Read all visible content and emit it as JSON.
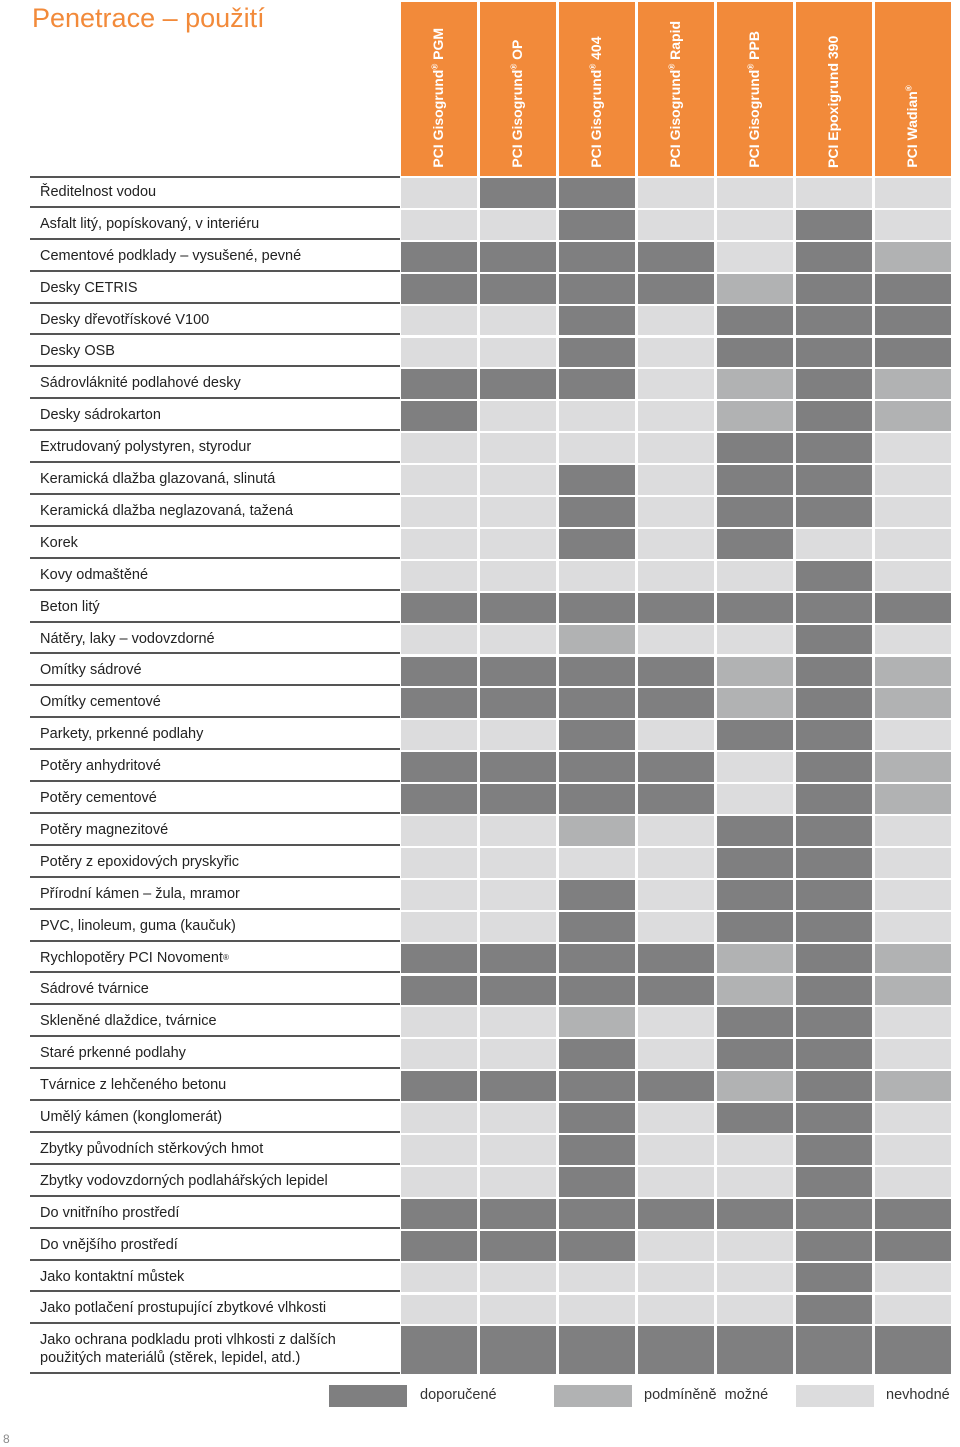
{
  "title": "Penetrace – použití",
  "products": [
    {
      "name": "PCI Gisogrund",
      "reg": "®",
      "suffix": " PGM"
    },
    {
      "name": "PCI Gisogrund",
      "reg": "®",
      "suffix": " OP"
    },
    {
      "name": "PCI Gisogrund",
      "reg": "®",
      "suffix": " 404"
    },
    {
      "name": "PCI Gisogrund",
      "reg": "®",
      "suffix": " Rapid"
    },
    {
      "name": "PCI Gisogrund",
      "reg": "®",
      "suffix": " PPB"
    },
    {
      "name": "PCI Epoxigrund 390",
      "reg": "",
      "suffix": ""
    },
    {
      "name": "PCI Wadian",
      "reg": "®",
      "suffix": ""
    }
  ],
  "colors": {
    "header": "#f28a3a",
    "1": "#7f7f80",
    "2": "#b1b2b3",
    "3": "#dcdcdd"
  },
  "rows": [
    {
      "label": "Ředitelnost vodou",
      "ratings": [
        3,
        1,
        1,
        3,
        3,
        3,
        3
      ]
    },
    {
      "label": "Asfalt litý, popískovaný, v interiéru",
      "ratings": [
        3,
        3,
        1,
        3,
        3,
        1,
        3
      ]
    },
    {
      "label": "Cementové podklady – vysušené, pevné",
      "ratings": [
        1,
        1,
        1,
        1,
        3,
        1,
        2
      ]
    },
    {
      "label": "Desky CETRIS",
      "ratings": [
        1,
        1,
        1,
        1,
        2,
        1,
        1
      ]
    },
    {
      "label": "Desky dřevotřískové V100",
      "ratings": [
        3,
        3,
        1,
        3,
        1,
        1,
        1
      ]
    },
    {
      "label": "Desky OSB",
      "ratings": [
        3,
        3,
        1,
        3,
        1,
        1,
        1
      ]
    },
    {
      "label": "Sádrovláknité podlahové desky",
      "ratings": [
        1,
        1,
        1,
        3,
        2,
        1,
        2
      ]
    },
    {
      "label": "Desky sádrokarton",
      "ratings": [
        1,
        3,
        3,
        3,
        2,
        1,
        2
      ]
    },
    {
      "label": "Extrudovaný polystyren, styrodur",
      "ratings": [
        3,
        3,
        3,
        3,
        1,
        1,
        3
      ]
    },
    {
      "label": "Keramická dlažba glazovaná, slinutá",
      "ratings": [
        3,
        3,
        1,
        3,
        1,
        1,
        3
      ]
    },
    {
      "label": "Keramická dlažba neglazovaná, tažená",
      "ratings": [
        3,
        3,
        1,
        3,
        1,
        1,
        3
      ]
    },
    {
      "label": "Korek",
      "ratings": [
        3,
        3,
        1,
        3,
        1,
        3,
        3
      ]
    },
    {
      "label": "Kovy odmaštěné",
      "ratings": [
        3,
        3,
        3,
        3,
        3,
        1,
        3
      ]
    },
    {
      "label": "Beton litý",
      "ratings": [
        1,
        1,
        1,
        1,
        1,
        1,
        1
      ]
    },
    {
      "label": "Nátěry, laky – vodovzdorné",
      "ratings": [
        3,
        3,
        2,
        3,
        3,
        1,
        3
      ]
    },
    {
      "label": "Omítky sádrové",
      "ratings": [
        1,
        1,
        1,
        1,
        2,
        1,
        2
      ]
    },
    {
      "label": "Omítky cementové",
      "ratings": [
        1,
        1,
        1,
        1,
        2,
        1,
        2
      ]
    },
    {
      "label": "Parkety, prkenné podlahy",
      "ratings": [
        3,
        3,
        1,
        3,
        1,
        1,
        3
      ]
    },
    {
      "label": "Potěry anhydritové",
      "ratings": [
        1,
        1,
        1,
        1,
        3,
        1,
        2
      ]
    },
    {
      "label": "Potěry cementové",
      "ratings": [
        1,
        1,
        1,
        1,
        3,
        1,
        2
      ]
    },
    {
      "label": "Potěry magnezitové",
      "ratings": [
        3,
        3,
        2,
        3,
        1,
        1,
        3
      ]
    },
    {
      "label": "Potěry z epoxidových pryskyřic",
      "ratings": [
        3,
        3,
        3,
        3,
        1,
        1,
        3
      ]
    },
    {
      "label": "Přírodní kámen – žula, mramor",
      "ratings": [
        3,
        3,
        1,
        3,
        1,
        1,
        3
      ]
    },
    {
      "label": "PVC, linoleum, guma (kaučuk)",
      "ratings": [
        3,
        3,
        1,
        3,
        1,
        1,
        3
      ]
    },
    {
      "label": "Rychlopotěry PCI Novoment",
      "reg": "®",
      "ratings": [
        1,
        1,
        1,
        1,
        2,
        1,
        2
      ]
    },
    {
      "label": "Sádrové tvárnice",
      "ratings": [
        1,
        1,
        1,
        1,
        2,
        1,
        2
      ]
    },
    {
      "label": "Skleněné dlaždice, tvárnice",
      "ratings": [
        3,
        3,
        2,
        3,
        1,
        1,
        3
      ]
    },
    {
      "label": "Staré prkenné podlahy",
      "ratings": [
        3,
        3,
        1,
        3,
        1,
        1,
        3
      ]
    },
    {
      "label": "Tvárnice z lehčeného betonu",
      "ratings": [
        1,
        1,
        1,
        1,
        2,
        1,
        2
      ]
    },
    {
      "label": "Umělý kámen (konglomerát)",
      "ratings": [
        3,
        3,
        1,
        3,
        1,
        1,
        3
      ]
    },
    {
      "label": "Zbytky původních stěrkových hmot",
      "ratings": [
        3,
        3,
        1,
        3,
        3,
        1,
        3
      ]
    },
    {
      "label": "Zbytky vodovzdorných podlahářských lepidel",
      "ratings": [
        3,
        3,
        1,
        3,
        3,
        1,
        3
      ]
    },
    {
      "label": "Do vnitřního prostředí",
      "ratings": [
        1,
        1,
        1,
        1,
        1,
        1,
        1
      ]
    },
    {
      "label": "Do vnějšího prostředí",
      "ratings": [
        1,
        1,
        1,
        3,
        3,
        1,
        1
      ]
    },
    {
      "label": "Jako kontaktní můstek",
      "ratings": [
        3,
        3,
        3,
        3,
        3,
        1,
        3
      ]
    },
    {
      "label": "Jako potlačení prostupující zbytkové vlhkosti",
      "ratings": [
        3,
        3,
        3,
        3,
        3,
        1,
        3
      ]
    },
    {
      "label": "Jako ochrana podkladu proti vlhkosti z dalších použitých materiálů (stěrek, lepidel, atd.)",
      "double": true,
      "ratings": [
        1,
        1,
        1,
        1,
        1,
        1,
        1
      ]
    }
  ],
  "legend": [
    {
      "level": 1,
      "label": "doporučené"
    },
    {
      "level": 2,
      "label": "podmíněně  možné"
    },
    {
      "level": 3,
      "label": "nevhodné"
    }
  ],
  "page_number": "8"
}
